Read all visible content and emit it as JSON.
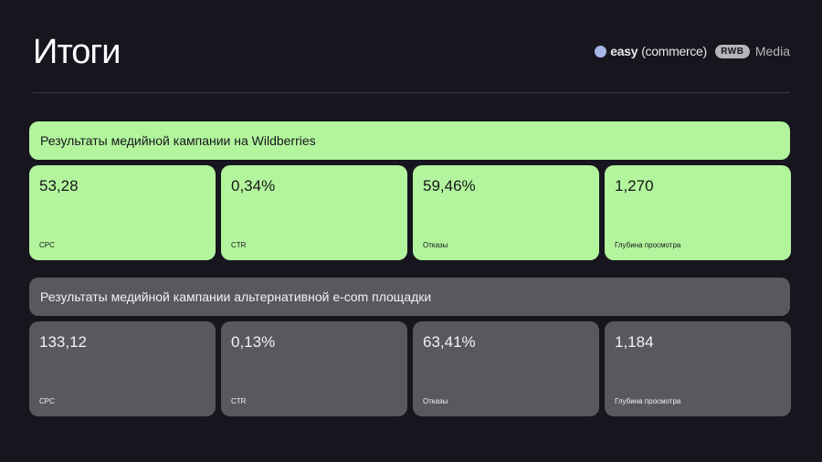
{
  "title": "Итоги",
  "logos": {
    "easy_prefix": "easy",
    "easy_suffix": "(commerce)",
    "rwb_mark": "RWB",
    "rwb_text": "Media"
  },
  "section_wb": {
    "heading": "Результаты медийной кампании на Wildberries",
    "metrics": [
      {
        "value": "53,28",
        "label": "CPC"
      },
      {
        "value": "0,34%",
        "label": "CTR"
      },
      {
        "value": "59,46%",
        "label": "Отказы"
      },
      {
        "value": "1,270",
        "label": "Глубина просмотра"
      }
    ]
  },
  "section_alt": {
    "heading": "Результаты медийной кампании альтернативной e-com площадки",
    "metrics": [
      {
        "value": "133,12",
        "label": "CPC"
      },
      {
        "value": "0,13%",
        "label": "CTR"
      },
      {
        "value": "63,41%",
        "label": "Отказы"
      },
      {
        "value": "1,184",
        "label": "Глубина просмотра"
      }
    ]
  },
  "colors": {
    "background": "#17161f",
    "accent_green": "#b3f59d",
    "card_gray": "#59585e"
  }
}
